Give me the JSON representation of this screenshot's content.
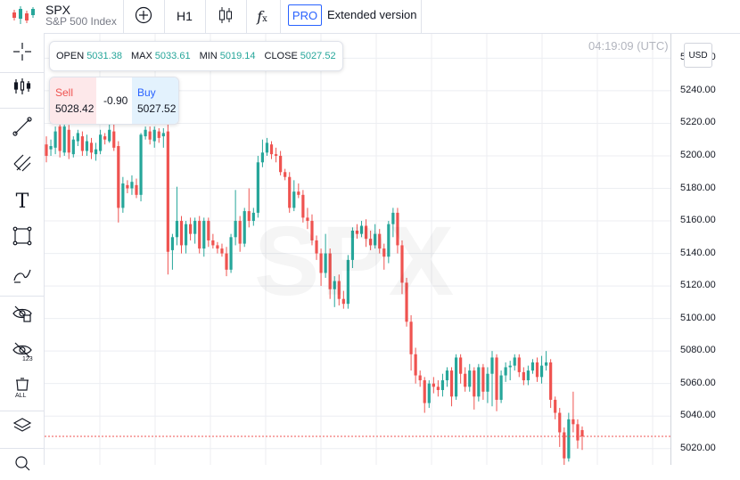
{
  "header": {
    "symbol": "SPX",
    "symbol_name": "S&P 500 Index",
    "interval": "H1",
    "pro_label": "PRO",
    "extended_label": "Extended version"
  },
  "ohlc": {
    "open_label": "OPEN",
    "open": "5031.38",
    "max_label": "MAX",
    "max": "5033.61",
    "min_label": "MIN",
    "min": "5019.14",
    "close_label": "CLOSE",
    "close": "5027.52"
  },
  "trade": {
    "sell_label": "Sell",
    "sell_price": "5028.42",
    "spread": "-0.90",
    "buy_label": "Buy",
    "buy_price": "5027.52"
  },
  "time_label": "04:19:09 (UTC)",
  "currency": "USD",
  "watermark": "SPX",
  "colors": {
    "up": "#26a69a",
    "down": "#ef5350",
    "accent": "#2962ff"
  },
  "sidebar_icons": [
    "crosshair-icon",
    "indicators-icon",
    "trend-line-icon",
    "pitchfork-icon",
    "text-icon",
    "rectangle-icon",
    "brush-icon",
    "hide-drawings-icon",
    "hide-measurements-icon",
    "remove-all-icon",
    "layers-icon",
    "zoom-icon"
  ],
  "chart_data": {
    "type": "candlestick",
    "ylim": [
      5010,
      5275
    ],
    "yticks": [
      "5260.00",
      "5240.00",
      "5220.00",
      "5200.00",
      "5180.00",
      "5160.00",
      "5140.00",
      "5120.00",
      "5100.00",
      "5080.00",
      "5060.00",
      "5040.00",
      "5020.00"
    ],
    "current_price": 5027.5,
    "candles": [
      [
        5207,
        5200,
        5212,
        5196
      ],
      [
        5204,
        5206,
        5210,
        5200
      ],
      [
        5205,
        5215,
        5218,
        5201
      ],
      [
        5218,
        5203,
        5220,
        5199
      ],
      [
        5202,
        5218,
        5221,
        5200
      ],
      [
        5216,
        5202,
        5219,
        5198
      ],
      [
        5201,
        5210,
        5212,
        5199
      ],
      [
        5209,
        5214,
        5216,
        5206
      ],
      [
        5212,
        5203,
        5215,
        5200
      ],
      [
        5203,
        5209,
        5213,
        5200
      ],
      [
        5208,
        5202,
        5211,
        5198
      ],
      [
        5201,
        5204,
        5208,
        5197
      ],
      [
        5203,
        5213,
        5216,
        5201
      ],
      [
        5212,
        5210,
        5214,
        5207
      ],
      [
        5209,
        5216,
        5221,
        5208
      ],
      [
        5215,
        5205,
        5223,
        5203
      ],
      [
        5206,
        5168,
        5209,
        5159
      ],
      [
        5168,
        5183,
        5187,
        5165
      ],
      [
        5182,
        5180,
        5185,
        5177
      ],
      [
        5180,
        5184,
        5188,
        5176
      ],
      [
        5182,
        5176,
        5186,
        5174
      ],
      [
        5176,
        5213,
        5214,
        5172
      ],
      [
        5212,
        5216,
        5218,
        5210
      ],
      [
        5215,
        5210,
        5218,
        5207
      ],
      [
        5209,
        5216,
        5218,
        5205
      ],
      [
        5215,
        5211,
        5217,
        5208
      ],
      [
        5212,
        5214,
        5217,
        5205
      ],
      [
        5215,
        5141,
        5232,
        5127
      ],
      [
        5142,
        5150,
        5152,
        5130
      ],
      [
        5150,
        5160,
        5181,
        5145
      ],
      [
        5160,
        5145,
        5163,
        5140
      ],
      [
        5145,
        5158,
        5160,
        5140
      ],
      [
        5158,
        5152,
        5162,
        5148
      ],
      [
        5152,
        5160,
        5162,
        5146
      ],
      [
        5160,
        5143,
        5163,
        5140
      ],
      [
        5143,
        5160,
        5162,
        5138
      ],
      [
        5160,
        5148,
        5162,
        5144
      ],
      [
        5148,
        5145,
        5152,
        5143
      ],
      [
        5145,
        5143,
        5147,
        5140
      ],
      [
        5143,
        5140,
        5146,
        5138
      ],
      [
        5140,
        5130,
        5144,
        5126
      ],
      [
        5130,
        5150,
        5152,
        5128
      ],
      [
        5150,
        5160,
        5179,
        5145
      ],
      [
        5160,
        5146,
        5163,
        5141
      ],
      [
        5146,
        5166,
        5168,
        5144
      ],
      [
        5166,
        5160,
        5180,
        5156
      ],
      [
        5160,
        5165,
        5168,
        5157
      ],
      [
        5165,
        5196,
        5200,
        5162
      ],
      [
        5196,
        5202,
        5210,
        5193
      ],
      [
        5202,
        5208,
        5211,
        5200
      ],
      [
        5207,
        5201,
        5209,
        5198
      ],
      [
        5201,
        5200,
        5205,
        5196
      ],
      [
        5200,
        5190,
        5203,
        5188
      ],
      [
        5190,
        5187,
        5192,
        5185
      ],
      [
        5187,
        5168,
        5190,
        5165
      ],
      [
        5168,
        5178,
        5185,
        5166
      ],
      [
        5178,
        5176,
        5183,
        5174
      ],
      [
        5176,
        5162,
        5179,
        5159
      ],
      [
        5162,
        5160,
        5168,
        5155
      ],
      [
        5160,
        5148,
        5164,
        5145
      ],
      [
        5148,
        5140,
        5151,
        5136
      ],
      [
        5140,
        5128,
        5143,
        5120
      ],
      [
        5128,
        5140,
        5152,
        5125
      ],
      [
        5140,
        5118,
        5143,
        5112
      ],
      [
        5118,
        5123,
        5126,
        5107
      ],
      [
        5123,
        5112,
        5127,
        5108
      ],
      [
        5112,
        5109,
        5117,
        5106
      ],
      [
        5109,
        5136,
        5139,
        5106
      ],
      [
        5136,
        5154,
        5156,
        5131
      ],
      [
        5154,
        5152,
        5158,
        5149
      ],
      [
        5152,
        5157,
        5160,
        5150
      ],
      [
        5157,
        5149,
        5161,
        5144
      ],
      [
        5149,
        5145,
        5154,
        5142
      ],
      [
        5145,
        5152,
        5158,
        5143
      ],
      [
        5152,
        5143,
        5155,
        5140
      ],
      [
        5143,
        5138,
        5146,
        5130
      ],
      [
        5138,
        5158,
        5160,
        5134
      ],
      [
        5158,
        5165,
        5168,
        5150
      ],
      [
        5165,
        5145,
        5168,
        5140
      ],
      [
        5145,
        5122,
        5148,
        5115
      ],
      [
        5122,
        5098,
        5125,
        5095
      ],
      [
        5098,
        5078,
        5102,
        5068
      ],
      [
        5078,
        5065,
        5082,
        5060
      ],
      [
        5065,
        5062,
        5068,
        5058
      ],
      [
        5062,
        5048,
        5064,
        5042
      ],
      [
        5048,
        5060,
        5062,
        5045
      ],
      [
        5060,
        5058,
        5064,
        5054
      ],
      [
        5058,
        5056,
        5062,
        5052
      ],
      [
        5056,
        5062,
        5066,
        5052
      ],
      [
        5062,
        5068,
        5070,
        5058
      ],
      [
        5068,
        5052,
        5070,
        5046
      ],
      [
        5052,
        5076,
        5078,
        5050
      ],
      [
        5076,
        5066,
        5078,
        5060
      ],
      [
        5066,
        5058,
        5070,
        5055
      ],
      [
        5058,
        5068,
        5072,
        5055
      ],
      [
        5068,
        5052,
        5070,
        5044
      ],
      [
        5052,
        5070,
        5072,
        5049
      ],
      [
        5070,
        5055,
        5072,
        5050
      ],
      [
        5055,
        5066,
        5070,
        5048
      ],
      [
        5066,
        5076,
        5080,
        5046
      ],
      [
        5076,
        5050,
        5078,
        5043
      ],
      [
        5050,
        5065,
        5068,
        5048
      ],
      [
        5065,
        5070,
        5073,
        5061
      ],
      [
        5070,
        5071,
        5074,
        5062
      ],
      [
        5071,
        5076,
        5078,
        5068
      ],
      [
        5076,
        5067,
        5078,
        5064
      ],
      [
        5067,
        5062,
        5070,
        5059
      ],
      [
        5062,
        5068,
        5071,
        5059
      ],
      [
        5068,
        5073,
        5075,
        5066
      ],
      [
        5073,
        5064,
        5076,
        5061
      ],
      [
        5064,
        5071,
        5077,
        5060
      ],
      [
        5071,
        5073,
        5080,
        5068
      ],
      [
        5073,
        5050,
        5075,
        5045
      ],
      [
        5050,
        5042,
        5052,
        5038
      ],
      [
        5042,
        5030,
        5045,
        5021
      ],
      [
        5030,
        5014,
        5033,
        5008
      ],
      [
        5014,
        5038,
        5042,
        5012
      ],
      [
        5038,
        5035,
        5055,
        5030
      ],
      [
        5035,
        5025,
        5038,
        5020
      ],
      [
        5031.38,
        5027.52,
        5033.61,
        5019.14
      ]
    ]
  }
}
